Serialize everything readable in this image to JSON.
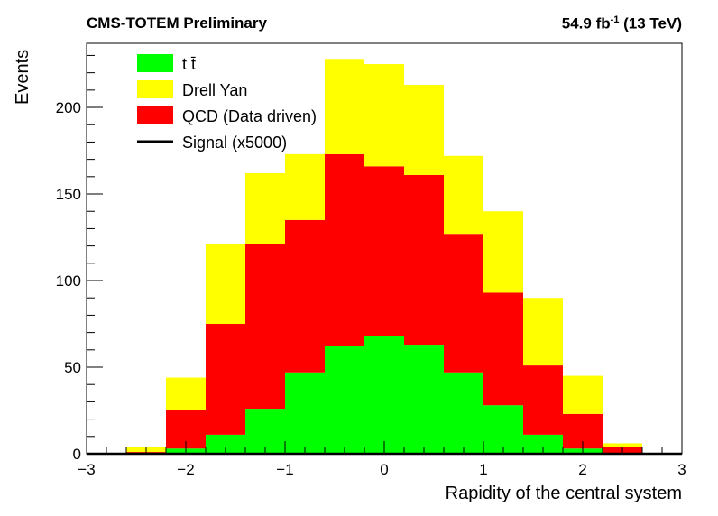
{
  "header": {
    "experiment": "CMS-TOTEM Preliminary",
    "lumi_value": "54.9 fb",
    "lumi_exp": "-1",
    "energy": " (13 TeV)"
  },
  "chart_data": {
    "type": "histogram",
    "stacked": true,
    "xlabel": "Rapidity of the central system",
    "ylabel": "Events",
    "xlim": [
      -3,
      3
    ],
    "ylim": [
      0,
      237
    ],
    "x_ticks": [
      -3,
      -2,
      -1,
      0,
      1,
      2,
      3
    ],
    "y_ticks": [
      0,
      50,
      100,
      150,
      200
    ],
    "bin_edges": [
      -2.6,
      -2.2,
      -1.8,
      -1.4,
      -1.0,
      -0.6,
      -0.2,
      0.2,
      0.6,
      1.0,
      1.4,
      1.8,
      2.2,
      2.6
    ],
    "series": [
      {
        "name": "t t̄",
        "color": "#00ff00",
        "values": [
          0.5,
          3,
          11,
          26,
          47,
          62,
          68,
          63,
          47,
          28,
          11,
          3,
          0.5
        ]
      },
      {
        "name": "QCD (Data driven)",
        "color": "#ff0000",
        "values": [
          0.5,
          22,
          64,
          95,
          88,
          111,
          98,
          98,
          80,
          65,
          40,
          20,
          3.5
        ]
      },
      {
        "name": "Drell Yan",
        "color": "#ffff00",
        "values": [
          3,
          19,
          46,
          41,
          38,
          55,
          59,
          52,
          45,
          47,
          39,
          22,
          2
        ]
      }
    ],
    "signal": {
      "name": "Signal (x5000)",
      "color": "#000000",
      "values": []
    },
    "legend": {
      "position": "top-left",
      "entries": [
        {
          "label": "t t̄",
          "color": "#00ff00",
          "kind": "box"
        },
        {
          "label": "Drell Yan",
          "color": "#ffff00",
          "kind": "box"
        },
        {
          "label": "QCD (Data driven)",
          "color": "#ff0000",
          "kind": "box"
        },
        {
          "label": "Signal (x5000)",
          "color": "#000000",
          "kind": "line"
        }
      ]
    }
  }
}
